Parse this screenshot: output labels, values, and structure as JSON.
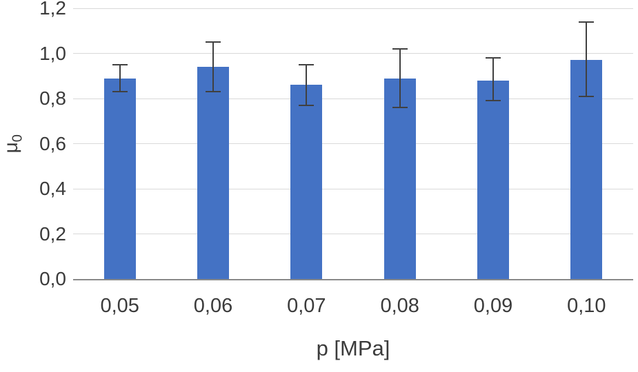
{
  "chart_data": {
    "type": "bar",
    "categories": [
      "0,05",
      "0,06",
      "0,07",
      "0,08",
      "0,09",
      "0,10"
    ],
    "values": [
      0.89,
      0.94,
      0.86,
      0.89,
      0.88,
      0.97
    ],
    "error_high": [
      0.95,
      1.05,
      0.95,
      1.02,
      0.98,
      1.14
    ],
    "error_low": [
      0.83,
      0.83,
      0.77,
      0.76,
      0.79,
      0.81
    ],
    "title": "",
    "xlabel": "p [MPa]",
    "ylabel": "μ0",
    "ylabel_main": "μ",
    "ylabel_sub": "0",
    "ylim": [
      0,
      1.2
    ],
    "ytick_step": 0.2,
    "ytick_labels": [
      "0,0",
      "0,2",
      "0,4",
      "0,6",
      "0,8",
      "1,0",
      "1,2"
    ],
    "grid": true,
    "legend": "none",
    "bar_color": "#4472c4",
    "error_color": "#404040",
    "gridline_color": "#d9d9d9"
  }
}
